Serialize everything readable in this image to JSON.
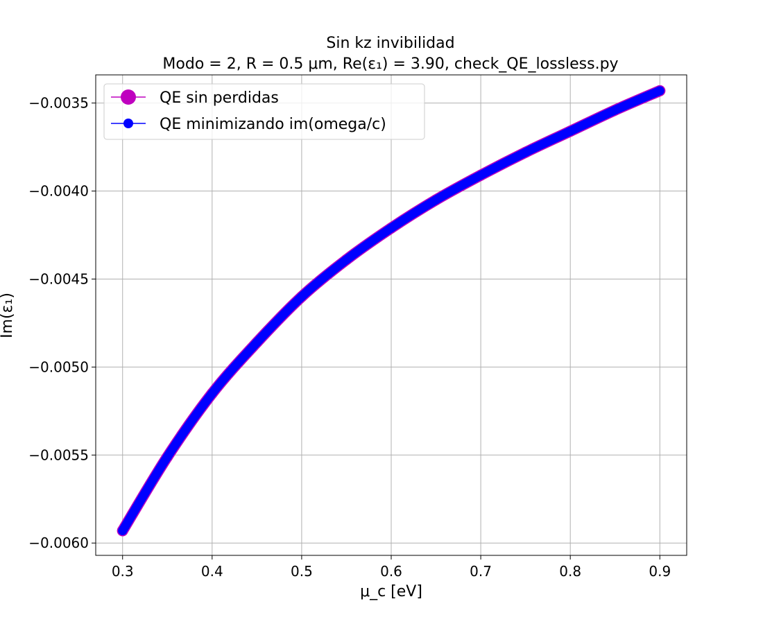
{
  "chart_data": {
    "type": "line",
    "title_line1": "Sin kz invibilidad",
    "title_line2": "Modo = 2, R = 0.5 μm, Re(ε₁) = 3.90, check_QE_lossless.py",
    "xlabel": "μ_c [eV]",
    "ylabel": "Im(ε₁)",
    "xlim": [
      0.27,
      0.93
    ],
    "ylim": [
      -0.00607,
      -0.00334
    ],
    "xticks": [
      0.3,
      0.4,
      0.5,
      0.6,
      0.7,
      0.8,
      0.9
    ],
    "xtick_labels": [
      "0.3",
      "0.4",
      "0.5",
      "0.6",
      "0.7",
      "0.8",
      "0.9"
    ],
    "yticks": [
      -0.0035,
      -0.004,
      -0.0045,
      -0.005,
      -0.0055,
      -0.006
    ],
    "ytick_labels": [
      "−0.0035",
      "−0.0040",
      "−0.0045",
      "−0.0050",
      "−0.0055",
      "−0.0060"
    ],
    "grid": true,
    "legend_position": "top-left",
    "series": [
      {
        "name": "QE sin perdidas",
        "color": "#bf00bf",
        "marker": "circle-large",
        "x": [
          0.3,
          0.35,
          0.4,
          0.45,
          0.5,
          0.55,
          0.6,
          0.65,
          0.7,
          0.75,
          0.8,
          0.85,
          0.9
        ],
        "y": [
          -0.00593,
          -0.00551,
          -0.00515,
          -0.00486,
          -0.0046,
          -0.00439,
          -0.00421,
          -0.00405,
          -0.00391,
          -0.00378,
          -0.00366,
          -0.00354,
          -0.00343
        ]
      },
      {
        "name": "QE minimizando im(omega/c)",
        "color": "#0000ff",
        "marker": "circle",
        "x": [
          0.3,
          0.35,
          0.4,
          0.45,
          0.5,
          0.55,
          0.6,
          0.65,
          0.7,
          0.75,
          0.8,
          0.85,
          0.9
        ],
        "y": [
          -0.00593,
          -0.00551,
          -0.00515,
          -0.00486,
          -0.0046,
          -0.00439,
          -0.00421,
          -0.00405,
          -0.00391,
          -0.00378,
          -0.00366,
          -0.00354,
          -0.00343
        ]
      }
    ]
  }
}
